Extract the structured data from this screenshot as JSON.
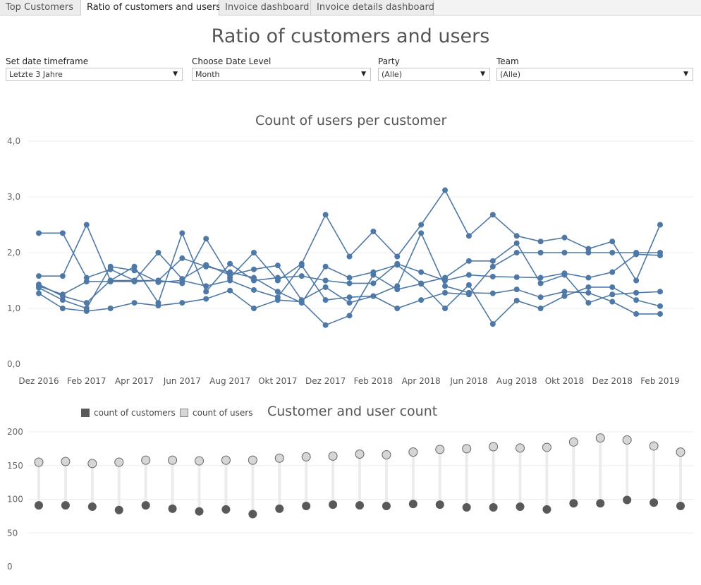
{
  "tabs": [
    {
      "label": "Top Customers",
      "active": false
    },
    {
      "label": "Ratio of customers and users",
      "active": true
    },
    {
      "label": "Invoice dashboard",
      "active": false
    },
    {
      "label": "Invoice details dashboard",
      "active": false
    }
  ],
  "page_title": "Ratio of customers and users",
  "filters": [
    {
      "label": "Set date timeframe",
      "value": "Letzte 3 Jahre"
    },
    {
      "label": "Choose Date Level",
      "value": "Month"
    },
    {
      "label": "Party",
      "value": "(Alle)"
    },
    {
      "label": "Team",
      "value": "(Alle)"
    }
  ],
  "colors": {
    "line": "#4e79a7",
    "customers": "#595959",
    "users": "#d6d6d6",
    "stem": "#ececec",
    "grid": "#ececec"
  },
  "icons": {
    "dropdown": "triangle-down-icon"
  },
  "chart_data": [
    {
      "type": "line",
      "title": "Count of users per customer",
      "ylim": [
        0,
        4
      ],
      "yticks": [
        "0,0",
        "1,0",
        "2,0",
        "3,0",
        "4,0"
      ],
      "xtick_labels": [
        "Dez 2016",
        "Feb 2017",
        "Apr 2017",
        "Jun 2017",
        "Aug 2017",
        "Okt 2017",
        "Dez 2017",
        "Feb 2018",
        "Apr 2018",
        "Jun 2018",
        "Aug 2018",
        "Okt 2018",
        "Dez 2018",
        "Feb 2019"
      ],
      "x": [
        "Dez 2016",
        "Jan 2017",
        "Feb 2017",
        "Mär 2017",
        "Apr 2017",
        "Mai 2017",
        "Jun 2017",
        "Jul 2017",
        "Aug 2017",
        "Sep 2017",
        "Okt 2017",
        "Nov 2017",
        "Dez 2017",
        "Jan 2018",
        "Feb 2018",
        "Mär 2018",
        "Apr 2018",
        "Mai 2018",
        "Jun 2018",
        "Jul 2018",
        "Aug 2018",
        "Sep 2018",
        "Okt 2018",
        "Nov 2018",
        "Dez 2018",
        "Jan 2019",
        "Feb 2019"
      ],
      "grid": true,
      "series": [
        {
          "values": [
            2.35,
            2.35,
            1.55,
            1.7,
            1.5,
            1.5,
            1.45,
            2.25,
            1.55,
            2.0,
            1.5,
            1.8,
            2.68,
            1.93,
            2.38,
            1.93,
            2.5,
            3.12,
            2.3,
            2.68,
            2.3,
            2.2,
            2.27,
            2.07,
            2.2,
            1.5,
            2.5
          ]
        },
        {
          "values": [
            1.58,
            1.58,
            2.5,
            1.5,
            1.75,
            1.1,
            2.35,
            1.3,
            1.8,
            1.5,
            1.55,
            1.58,
            1.5,
            1.45,
            1.45,
            1.8,
            1.65,
            1.5,
            1.6,
            1.57,
            1.56,
            1.55,
            1.63,
            1.55,
            1.65,
            1.97,
            1.95
          ]
        },
        {
          "values": [
            1.43,
            1.22,
            1.1,
            1.5,
            1.5,
            2.0,
            1.53,
            1.78,
            1.6,
            1.7,
            1.77,
            1.15,
            1.38,
            1.1,
            1.22,
            1.4,
            2.35,
            1.4,
            1.28,
            1.27,
            1.34,
            1.2,
            1.3,
            1.28,
            1.12,
            0.9,
            0.9
          ]
        },
        {
          "values": [
            1.4,
            1.25,
            1.48,
            1.48,
            1.48,
            1.5,
            1.9,
            1.75,
            1.65,
            1.55,
            1.3,
            1.1,
            1.75,
            1.55,
            1.65,
            1.78,
            1.45,
            1.55,
            1.85,
            1.85,
            2.17,
            1.45,
            1.6,
            1.1,
            1.25,
            1.28,
            1.3
          ]
        },
        {
          "values": [
            1.37,
            1.15,
            1.0,
            1.75,
            1.68,
            1.47,
            1.5,
            1.4,
            1.5,
            1.33,
            1.2,
            1.77,
            1.15,
            1.2,
            1.22,
            1.0,
            1.15,
            1.28,
            1.25,
            1.75,
            2.0,
            2.0,
            2.0,
            2.0,
            2.0,
            2.0,
            2.0
          ]
        },
        {
          "values": [
            1.27,
            1.0,
            0.95,
            1.0,
            1.1,
            1.05,
            1.1,
            1.17,
            1.32,
            1.0,
            1.15,
            1.12,
            0.7,
            0.87,
            1.6,
            1.34,
            1.44,
            1.0,
            1.42,
            0.72,
            1.14,
            1.0,
            1.22,
            1.38,
            1.38,
            1.15,
            1.04
          ]
        }
      ]
    },
    {
      "type": "scatter",
      "title": "Customer and user count",
      "ylim": [
        0,
        200
      ],
      "yticks": [
        "0",
        "50",
        "100",
        "150",
        "200"
      ],
      "grid": true,
      "legend": "top-left",
      "series": [
        {
          "name": "count of customers",
          "values": [
            91,
            91,
            89,
            84,
            91,
            86,
            82,
            85,
            78,
            86,
            90,
            92,
            91,
            90,
            93,
            92,
            88,
            88,
            89,
            85,
            94,
            94,
            99,
            95,
            90
          ]
        },
        {
          "name": "count of users",
          "values": [
            155,
            156,
            153,
            155,
            158,
            158,
            157,
            158,
            158,
            161,
            163,
            164,
            167,
            166,
            170,
            174,
            175,
            178,
            176,
            177,
            185,
            191,
            188,
            179,
            170
          ]
        }
      ]
    }
  ]
}
